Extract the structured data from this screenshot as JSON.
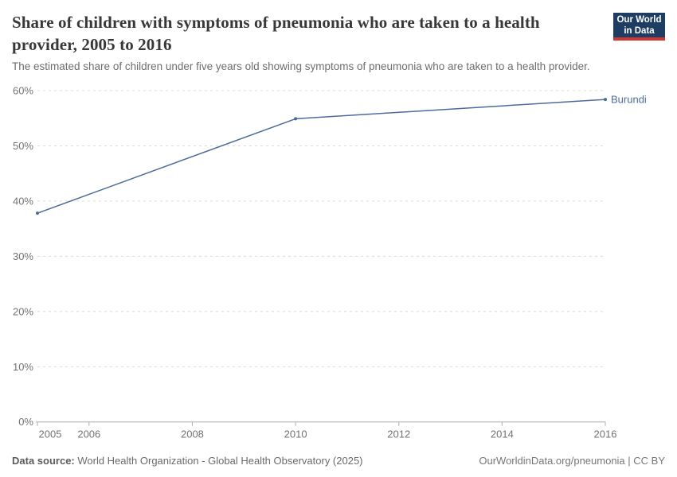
{
  "header": {
    "title": "Share of children with symptoms of pneumonia who are taken to a health provider, 2005 to 2016",
    "subtitle": "The estimated share of children under five years old showing symptoms of pneumonia who are taken to a health provider.",
    "logo": {
      "line1": "Our World",
      "line2": "in Data",
      "background_color": "#1d3d63",
      "bar_color": "#cd3731"
    }
  },
  "chart_data": {
    "type": "line",
    "title": "Share of children with symptoms of pneumonia who are taken to a health provider, 2005 to 2016",
    "xlabel": "",
    "ylabel": "",
    "xlim": [
      2005,
      2016
    ],
    "ylim": [
      0,
      60
    ],
    "grid": "horizontal-dashed",
    "legend_position": "end-of-line-label",
    "x_ticks": [
      {
        "value": 2005,
        "label": "2005"
      },
      {
        "value": 2006,
        "label": "2006"
      },
      {
        "value": 2008,
        "label": "2008"
      },
      {
        "value": 2010,
        "label": "2010"
      },
      {
        "value": 2012,
        "label": "2012"
      },
      {
        "value": 2014,
        "label": "2014"
      },
      {
        "value": 2016,
        "label": "2016"
      }
    ],
    "y_ticks": [
      {
        "value": 0,
        "label": "0%"
      },
      {
        "value": 10,
        "label": "10%"
      },
      {
        "value": 20,
        "label": "20%"
      },
      {
        "value": 30,
        "label": "30%"
      },
      {
        "value": 40,
        "label": "40%"
      },
      {
        "value": 50,
        "label": "50%"
      },
      {
        "value": 60,
        "label": "60%"
      }
    ],
    "series": [
      {
        "name": "Burundi",
        "color": "#4c6a9c",
        "x": [
          2005,
          2010,
          2016
        ],
        "values": [
          37.8,
          54.9,
          58.4
        ]
      }
    ]
  },
  "footer": {
    "datasource_label": "Data source:",
    "datasource_value": " World Health Organization - Global Health Observatory (2025)",
    "attribution": "OurWorldinData.org/pneumonia | CC BY"
  },
  "colors": {
    "title": "#383838",
    "subtitle": "#6e6e6e",
    "axis_text": "#737373",
    "gridline": "#dcdcdc",
    "axis_line": "#adadad"
  }
}
